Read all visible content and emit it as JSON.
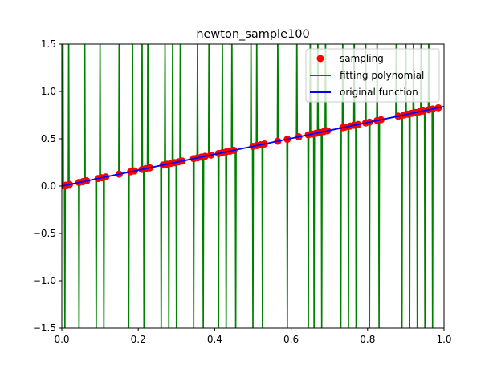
{
  "chart_data": {
    "type": "line",
    "title": "newton_sample100",
    "xlabel": "",
    "ylabel": "",
    "xlim": [
      0.0,
      1.0
    ],
    "ylim": [
      -1.5,
      1.5
    ],
    "grid": false,
    "legend_position": "top-right",
    "x_ticks": [
      "0.0",
      "0.2",
      "0.4",
      "0.6",
      "0.8",
      "1.0"
    ],
    "y_ticks": [
      "−1.5",
      "−1.0",
      "−0.5",
      "0.0",
      "0.5",
      "1.0",
      "1.5"
    ],
    "x_tick_values": [
      0.0,
      0.2,
      0.4,
      0.6,
      0.8,
      1.0
    ],
    "y_tick_values": [
      -1.5,
      -1.0,
      -0.5,
      0.0,
      0.5,
      1.0,
      1.5
    ],
    "series": [
      {
        "name": "sampling",
        "kind": "scatter",
        "color": "#ff0000",
        "x": [
          0.0,
          0.01,
          0.02,
          0.045,
          0.055,
          0.065,
          0.095,
          0.105,
          0.115,
          0.15,
          0.18,
          0.19,
          0.21,
          0.22,
          0.23,
          0.265,
          0.275,
          0.285,
          0.295,
          0.305,
          0.315,
          0.345,
          0.355,
          0.365,
          0.375,
          0.39,
          0.41,
          0.42,
          0.43,
          0.44,
          0.45,
          0.5,
          0.51,
          0.52,
          0.53,
          0.565,
          0.59,
          0.62,
          0.645,
          0.655,
          0.665,
          0.675,
          0.685,
          0.695,
          0.735,
          0.74,
          0.755,
          0.765,
          0.775,
          0.795,
          0.805,
          0.825,
          0.835,
          0.88,
          0.895,
          0.905,
          0.915,
          0.925,
          0.935,
          0.945,
          0.96,
          0.97,
          0.985
        ],
        "y": [
          0.0,
          0.0084,
          0.0168,
          0.0378,
          0.0462,
          0.0546,
          0.0798,
          0.0882,
          0.0966,
          0.126,
          0.1512,
          0.1596,
          0.1764,
          0.1848,
          0.1932,
          0.2226,
          0.231,
          0.2394,
          0.2478,
          0.2562,
          0.2646,
          0.2898,
          0.2982,
          0.3066,
          0.315,
          0.3276,
          0.3444,
          0.3528,
          0.3612,
          0.3696,
          0.378,
          0.42,
          0.4284,
          0.4368,
          0.4452,
          0.4746,
          0.4956,
          0.5208,
          0.5418,
          0.5502,
          0.5586,
          0.567,
          0.5754,
          0.5838,
          0.6174,
          0.6216,
          0.6342,
          0.6426,
          0.651,
          0.6678,
          0.6762,
          0.693,
          0.7014,
          0.7392,
          0.7518,
          0.7602,
          0.7686,
          0.777,
          0.7854,
          0.7938,
          0.8064,
          0.8148,
          0.8274
        ]
      },
      {
        "name": "fitting polynomial",
        "kind": "spikes",
        "color": "#008000",
        "x": [
          0.003,
          0.008,
          0.018,
          0.045,
          0.06,
          0.09,
          0.1,
          0.11,
          0.15,
          0.175,
          0.185,
          0.21,
          0.215,
          0.225,
          0.26,
          0.27,
          0.28,
          0.29,
          0.3,
          0.31,
          0.345,
          0.355,
          0.37,
          0.385,
          0.41,
          0.42,
          0.43,
          0.445,
          0.455,
          0.495,
          0.5,
          0.51,
          0.525,
          0.565,
          0.59,
          0.615,
          0.645,
          0.65,
          0.66,
          0.67,
          0.68,
          0.69,
          0.73,
          0.735,
          0.75,
          0.765,
          0.77,
          0.795,
          0.805,
          0.825,
          0.83,
          0.875,
          0.89,
          0.9,
          0.91,
          0.92,
          0.93,
          0.94,
          0.95,
          0.96,
          0.97
        ],
        "dir": [
          1,
          -1,
          1,
          -1,
          1,
          -1,
          1,
          -1,
          1,
          -1,
          1,
          1,
          -1,
          1,
          -1,
          1,
          -1,
          1,
          -1,
          1,
          -1,
          1,
          -1,
          1,
          -1,
          1,
          -1,
          1,
          -1,
          1,
          -1,
          1,
          -1,
          1,
          -1,
          1,
          -1,
          1,
          -1,
          1,
          -1,
          1,
          -1,
          1,
          -1,
          1,
          -1,
          1,
          -1,
          1,
          -1,
          1,
          -1,
          1,
          -1,
          1,
          -1,
          1,
          -1,
          1,
          -1
        ]
      },
      {
        "name": "original function",
        "kind": "line",
        "color": "#0000ff",
        "x": [
          0.0,
          1.0
        ],
        "y": [
          0.0,
          0.84
        ]
      }
    ]
  }
}
